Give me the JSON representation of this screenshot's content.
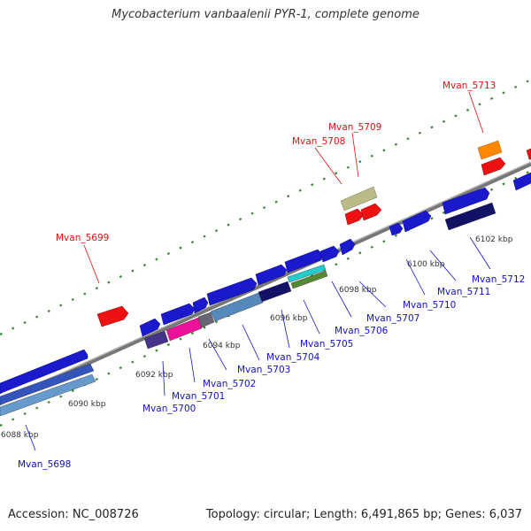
{
  "title": "Mycobacterium vanbaalenii PYR-1, complete genome",
  "accession": "Accession: NC_008726",
  "topology": "Topology: circular; Length: 6,491,865 bp; Genes: 6,037",
  "colors": {
    "forward_label": "#dd1111",
    "reverse_label": "#1111cc",
    "backbone": "#888888",
    "ticks": "#338833"
  },
  "kbp_labels": [
    "6088 kbp",
    "6090 kbp",
    "6092 kbp",
    "6094 kbp",
    "6096 kbp",
    "6098 kbp",
    "6100 kbp",
    "6102 kbp"
  ],
  "forward_genes": [
    "Mvan_5699",
    "Mvan_5708",
    "Mvan_5709",
    "Mvan_5713"
  ],
  "reverse_genes": [
    "Mvan_5698",
    "Mvan_5700",
    "Mvan_5701",
    "Mvan_5702",
    "Mvan_5703",
    "Mvan_5704",
    "Mvan_5705",
    "Mvan_5706",
    "Mvan_5707",
    "Mvan_5710",
    "Mvan_5711",
    "Mvan_5712"
  ]
}
